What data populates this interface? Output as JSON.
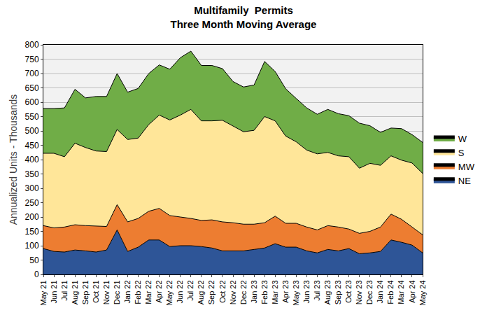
{
  "chart_data": {
    "type": "area",
    "title": "Multifamily  Permits",
    "subtitle": "Three Month Moving Average",
    "y_label": "Annualized Units - Thousands",
    "stacked": true,
    "grid": true,
    "legend": "right",
    "categories": [
      "May 21",
      "Jun 21",
      "Jul 21",
      "Aug 21",
      "Sep 21",
      "Oct 21",
      "Nov 21",
      "Dec 21",
      "Jan 22",
      "Feb 22",
      "Mar 22",
      "Apr 22",
      "May 22",
      "Jun 22",
      "Jul 22",
      "Aug 22",
      "Sep 22",
      "Oct 22",
      "Nov 22",
      "Dec 22",
      "Jan 23",
      "Feb 23",
      "Mar 23",
      "Apr 23",
      "May 23",
      "Jun 23",
      "Jul 23",
      "Aug 23",
      "Sep 23",
      "Oct 23",
      "Nov 23",
      "Dec 23",
      "Jan 24",
      "Feb 24",
      "Mar 24",
      "Apr 24",
      "May 24"
    ],
    "series": [
      {
        "name": "NE",
        "color": "#2e5597",
        "values": [
          90,
          80,
          78,
          85,
          82,
          78,
          85,
          155,
          80,
          95,
          120,
          120,
          97,
          100,
          100,
          97,
          92,
          82,
          82,
          82,
          87,
          92,
          107,
          95,
          95,
          82,
          75,
          87,
          82,
          90,
          72,
          75,
          80,
          120,
          112,
          102,
          75
        ]
      },
      {
        "name": "MW",
        "color": "#ed7d31",
        "values": [
          80,
          82,
          87,
          88,
          88,
          90,
          82,
          88,
          103,
          100,
          100,
          110,
          108,
          100,
          95,
          91,
          98,
          101,
          98,
          93,
          88,
          88,
          96,
          83,
          83,
          83,
          80,
          83,
          83,
          68,
          71,
          75,
          85,
          90,
          80,
          63,
          63
        ]
      },
      {
        "name": "S",
        "color": "#ffe699",
        "values": [
          252,
          260,
          245,
          284,
          272,
          262,
          261,
          262,
          287,
          280,
          302,
          325,
          333,
          355,
          380,
          347,
          345,
          354,
          337,
          322,
          327,
          370,
          332,
          304,
          284,
          268,
          265,
          255,
          248,
          252,
          227,
          237,
          215,
          203,
          206,
          223,
          214
        ]
      },
      {
        "name": "W",
        "color": "#70ad47",
        "values": [
          156,
          156,
          170,
          188,
          173,
          190,
          192,
          195,
          165,
          173,
          178,
          175,
          177,
          200,
          203,
          193,
          193,
          180,
          155,
          156,
          158,
          192,
          172,
          165,
          151,
          147,
          138,
          150,
          147,
          143,
          157,
          131,
          115,
          97,
          110,
          99,
          108
        ]
      }
    ],
    "ylim": [
      0,
      800
    ],
    "yticks": [
      0,
      50,
      100,
      150,
      200,
      250,
      300,
      350,
      400,
      450,
      500,
      550,
      600,
      650,
      700,
      750,
      800
    ]
  }
}
